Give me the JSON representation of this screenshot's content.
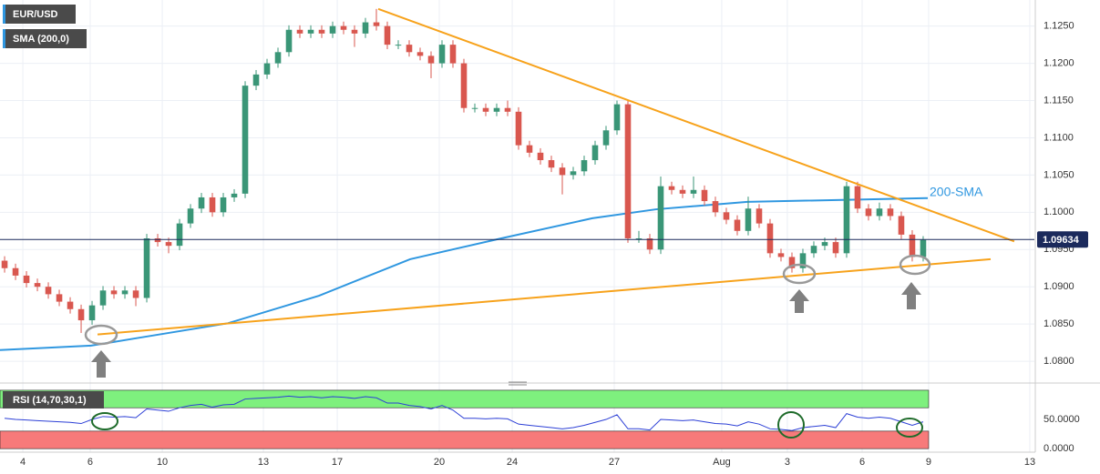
{
  "chart_data": [
    {
      "type": "candlestick",
      "xlim": [
        -0.42,
        94.17
      ],
      "ylim": [
        1.0772,
        1.1285
      ],
      "grid": true,
      "legend": [
        "EUR/USD",
        "SMA (200,0)"
      ],
      "up_color": "#3a9677",
      "down_color": "#d9574f",
      "yticks": [
        {
          "value": 1.125,
          "label": "1.1250"
        },
        {
          "value": 1.12,
          "label": "1.1200"
        },
        {
          "value": 1.115,
          "label": "1.1150"
        },
        {
          "value": 1.11,
          "label": "1.1100"
        },
        {
          "value": 1.105,
          "label": "1.1050"
        },
        {
          "value": 1.1,
          "label": "1.1000"
        },
        {
          "value": 1.095,
          "label": "1.0950"
        },
        {
          "value": 1.09,
          "label": "1.0900"
        },
        {
          "value": 1.085,
          "label": "1.0850"
        },
        {
          "value": 1.08,
          "label": "1.0800"
        }
      ],
      "open": [
        1.0935,
        1.0925,
        1.0915,
        1.0905,
        1.09,
        1.089,
        1.088,
        1.087,
        1.0855,
        1.0875,
        1.0895,
        1.089,
        1.0895,
        1.0885,
        1.0965,
        1.096,
        1.0955,
        1.0985,
        1.1005,
        1.102,
        1.1,
        1.102,
        1.1025,
        1.117,
        1.1185,
        1.12,
        1.1215,
        1.1245,
        1.124,
        1.1245,
        1.124,
        1.125,
        1.1245,
        1.124,
        1.1255,
        1.125,
        1.1225,
        1.1225,
        1.1215,
        1.121,
        1.12,
        1.1225,
        1.12,
        1.114,
        1.114,
        1.1135,
        1.114,
        1.1135,
        1.109,
        1.108,
        1.107,
        1.106,
        1.105,
        1.1055,
        1.107,
        1.109,
        1.111,
        1.1145,
        1.0965,
        1.0965,
        1.095,
        1.1035,
        1.103,
        1.1025,
        1.103,
        1.1015,
        1.1,
        1.099,
        1.0975,
        1.1005,
        1.0985,
        1.0945,
        1.094,
        1.0925,
        1.0945,
        1.0955,
        1.096,
        1.0945,
        1.1035,
        1.1005,
        1.0995,
        1.1005,
        1.0995,
        1.097,
        1.094
      ],
      "high": [
        1.0941,
        1.0931,
        1.0921,
        1.0911,
        1.0906,
        1.0896,
        1.0886,
        1.0876,
        1.0881,
        1.0901,
        1.0901,
        1.0901,
        1.0901,
        1.0971,
        1.0971,
        1.0966,
        1.0991,
        1.1011,
        1.1026,
        1.1026,
        1.1026,
        1.1031,
        1.1176,
        1.1191,
        1.1206,
        1.1221,
        1.1251,
        1.1251,
        1.1251,
        1.1251,
        1.1256,
        1.1256,
        1.1251,
        1.1261,
        1.1273,
        1.1256,
        1.1231,
        1.1231,
        1.1221,
        1.1216,
        1.1231,
        1.1231,
        1.1206,
        1.1146,
        1.1146,
        1.1146,
        1.115,
        1.1141,
        1.1096,
        1.1086,
        1.1076,
        1.1066,
        1.1061,
        1.1076,
        1.1096,
        1.1116,
        1.115,
        1.1151,
        1.0975,
        1.0971,
        1.1048,
        1.1041,
        1.1036,
        1.1048,
        1.1036,
        1.1021,
        1.1006,
        1.0996,
        1.1021,
        1.1011,
        1.0991,
        1.0951,
        1.0946,
        1.0951,
        1.0961,
        1.0966,
        1.0966,
        1.1041,
        1.1041,
        1.1011,
        1.1013,
        1.1011,
        1.1001,
        1.0976,
        1.0968
      ],
      "low": [
        1.0919,
        1.0909,
        1.0899,
        1.0894,
        1.0884,
        1.0874,
        1.0864,
        1.0838,
        1.0849,
        1.0869,
        1.0884,
        1.0884,
        1.0874,
        1.0879,
        1.0954,
        1.0945,
        1.0949,
        1.0979,
        1.0999,
        1.0994,
        1.0994,
        1.1014,
        1.1019,
        1.1164,
        1.1179,
        1.1194,
        1.1209,
        1.1234,
        1.1234,
        1.1234,
        1.1234,
        1.1239,
        1.1222,
        1.1234,
        1.1244,
        1.1219,
        1.1219,
        1.1209,
        1.1204,
        1.118,
        1.1194,
        1.1194,
        1.1134,
        1.1134,
        1.1129,
        1.1129,
        1.1129,
        1.1084,
        1.1074,
        1.1064,
        1.1054,
        1.1024,
        1.1044,
        1.1049,
        1.1064,
        1.1084,
        1.1104,
        1.0959,
        1.0959,
        1.0944,
        1.0944,
        1.1024,
        1.1019,
        1.1019,
        1.1009,
        1.0994,
        1.0984,
        1.0969,
        1.0969,
        1.0979,
        1.0939,
        1.0934,
        1.0919,
        1.0919,
        1.0939,
        1.0949,
        1.0939,
        1.0939,
        1.0999,
        1.0989,
        1.0989,
        1.0989,
        1.0964,
        1.0934,
        1.0934
      ],
      "close": [
        1.0925,
        1.0915,
        1.0905,
        1.09,
        1.089,
        1.088,
        1.087,
        1.0855,
        1.0875,
        1.0895,
        1.089,
        1.0895,
        1.0885,
        1.0965,
        1.096,
        1.0955,
        1.0985,
        1.1005,
        1.102,
        1.1,
        1.102,
        1.1025,
        1.117,
        1.1185,
        1.12,
        1.1215,
        1.1245,
        1.124,
        1.1245,
        1.124,
        1.125,
        1.1245,
        1.124,
        1.1255,
        1.125,
        1.1225,
        1.1225,
        1.1215,
        1.121,
        1.12,
        1.1225,
        1.12,
        1.114,
        1.114,
        1.1135,
        1.114,
        1.1135,
        1.109,
        1.108,
        1.107,
        1.106,
        1.105,
        1.1055,
        1.107,
        1.109,
        1.111,
        1.1145,
        1.0965,
        1.0965,
        1.095,
        1.1035,
        1.103,
        1.1025,
        1.103,
        1.1015,
        1.1,
        1.099,
        1.0975,
        1.1005,
        1.0985,
        1.0945,
        1.094,
        1.0925,
        1.0945,
        1.0955,
        1.096,
        1.0945,
        1.1035,
        1.1005,
        1.0995,
        1.1005,
        1.0995,
        1.097,
        1.094,
        1.0963
      ],
      "sma": {
        "name": "200-SMA",
        "color": "#2f97e0",
        "x": [
          -0.42,
          7.92,
          12.08,
          20.42,
          28.75,
          37.08,
          45.42,
          53.75,
          59.58,
          67.92,
          84.42
        ],
        "values": [
          1.0815,
          1.0821,
          1.0831,
          1.0851,
          1.0888,
          1.0937,
          1.0965,
          1.0992,
          1.1004,
          1.1014,
          1.1019
        ]
      },
      "trendlines": [
        {
          "color": "#f7a21b",
          "x": [
            34.17,
            92.33
          ],
          "values": [
            1.1273,
            1.0961
          ]
        },
        {
          "color": "#f7a21b",
          "x": [
            8.5,
            90.17
          ],
          "values": [
            1.0836,
            1.0937
          ]
        }
      ],
      "last_price": 1.09634
    },
    {
      "type": "line",
      "title": "RSI (14,70,30,1)",
      "xlim": [
        -0.42,
        94.17
      ],
      "ylim": [
        -6,
        103
      ],
      "yticks": [
        {
          "value": 50,
          "label": "50.0000"
        },
        {
          "value": 0,
          "label": "0.0000"
        }
      ],
      "zones": [
        {
          "range": [
            70,
            100
          ],
          "color": "#7ef07e"
        },
        {
          "range": [
            0,
            30
          ],
          "color": "#f77a7a"
        }
      ],
      "xticks": [
        {
          "value": 1.67,
          "label": "4"
        },
        {
          "value": 7.83,
          "label": "6"
        },
        {
          "value": 14.42,
          "label": "10"
        },
        {
          "value": 23.67,
          "label": "13"
        },
        {
          "value": 30.42,
          "label": "17"
        },
        {
          "value": 39.75,
          "label": "20"
        },
        {
          "value": 46.42,
          "label": "24"
        },
        {
          "value": 55.75,
          "label": "27"
        },
        {
          "value": 65.58,
          "label": "Aug"
        },
        {
          "value": 71.58,
          "label": "3"
        },
        {
          "value": 78.42,
          "label": "6"
        },
        {
          "value": 84.5,
          "label": "9"
        },
        {
          "value": 93.75,
          "label": "13"
        }
      ],
      "color": "#2c3fd6",
      "values": [
        52,
        50,
        49,
        48,
        47,
        46,
        45,
        43,
        50,
        55,
        54,
        55,
        53,
        68,
        66,
        64,
        70,
        74,
        76,
        71,
        75,
        76,
        85,
        86,
        87,
        88,
        90,
        88,
        89,
        87,
        89,
        88,
        86,
        89,
        87,
        78,
        78,
        74,
        72,
        68,
        74,
        66,
        52,
        52,
        51,
        52,
        51,
        42,
        40,
        38,
        36,
        34,
        36,
        40,
        45,
        50,
        58,
        34,
        34,
        32,
        50,
        49,
        48,
        49,
        46,
        43,
        42,
        39,
        46,
        42,
        34,
        33,
        31,
        36,
        38,
        40,
        36,
        60,
        54,
        52,
        54,
        52,
        46,
        40,
        46
      ]
    }
  ]
}
